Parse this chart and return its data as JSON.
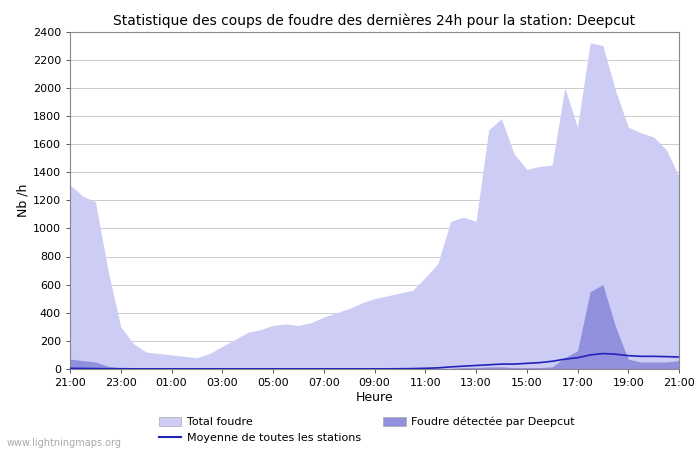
{
  "title": "Statistique des coups de foudre des dernières 24h pour la station: Deepcut",
  "xlabel": "Heure",
  "ylabel": "Nb /h",
  "watermark": "www.lightningmaps.org",
  "ylim": [
    0,
    2400
  ],
  "yticks": [
    0,
    200,
    400,
    600,
    800,
    1000,
    1200,
    1400,
    1600,
    1800,
    2000,
    2200,
    2400
  ],
  "xtick_labels": [
    "21:00",
    "23:00",
    "01:00",
    "03:00",
    "05:00",
    "07:00",
    "09:00",
    "11:00",
    "13:00",
    "15:00",
    "17:00",
    "19:00",
    "21:00"
  ],
  "background_color": "#ffffff",
  "fill_total_color": "#ccccf5",
  "fill_station_color": "#9090dd",
  "line_mean_color": "#2222bb",
  "legend_labels": [
    "Total foudre",
    "Moyenne de toutes les stations",
    "Foudre détectée par Deepcut"
  ],
  "hours": [
    0,
    1,
    2,
    3,
    4,
    5,
    6,
    7,
    8,
    9,
    10,
    11,
    12,
    13,
    14,
    15,
    16,
    17,
    18,
    19,
    20,
    21,
    22,
    23,
    24,
    25,
    26,
    27,
    28,
    29,
    30,
    31,
    32,
    33,
    34,
    35,
    36,
    37,
    38,
    39,
    40,
    41,
    42,
    43,
    44,
    45,
    46,
    47,
    48
  ],
  "total_foudre": [
    1310,
    1230,
    1190,
    700,
    300,
    180,
    120,
    110,
    100,
    90,
    80,
    110,
    160,
    210,
    260,
    280,
    310,
    320,
    310,
    330,
    370,
    400,
    430,
    470,
    500,
    520,
    540,
    560,
    650,
    750,
    1050,
    1080,
    1050,
    1700,
    1780,
    1530,
    1420,
    1440,
    1450,
    2000,
    1720,
    2320,
    2300,
    1980,
    1720,
    1680,
    1650,
    1560,
    1370
  ],
  "station_foudre": [
    70,
    60,
    50,
    20,
    8,
    5,
    3,
    2,
    2,
    2,
    2,
    2,
    2,
    2,
    2,
    2,
    2,
    2,
    2,
    2,
    2,
    2,
    2,
    2,
    2,
    2,
    2,
    2,
    2,
    2,
    5,
    10,
    10,
    15,
    15,
    10,
    10,
    10,
    15,
    80,
    130,
    550,
    600,
    300,
    70,
    50,
    50,
    50,
    60
  ],
  "mean_foudre": [
    5,
    4,
    3,
    2,
    2,
    1,
    1,
    1,
    1,
    1,
    1,
    1,
    1,
    1,
    1,
    1,
    1,
    1,
    1,
    1,
    1,
    1,
    1,
    1,
    1,
    1,
    2,
    3,
    5,
    8,
    15,
    20,
    25,
    30,
    35,
    35,
    40,
    45,
    55,
    70,
    80,
    100,
    110,
    105,
    95,
    90,
    90,
    88,
    85
  ]
}
